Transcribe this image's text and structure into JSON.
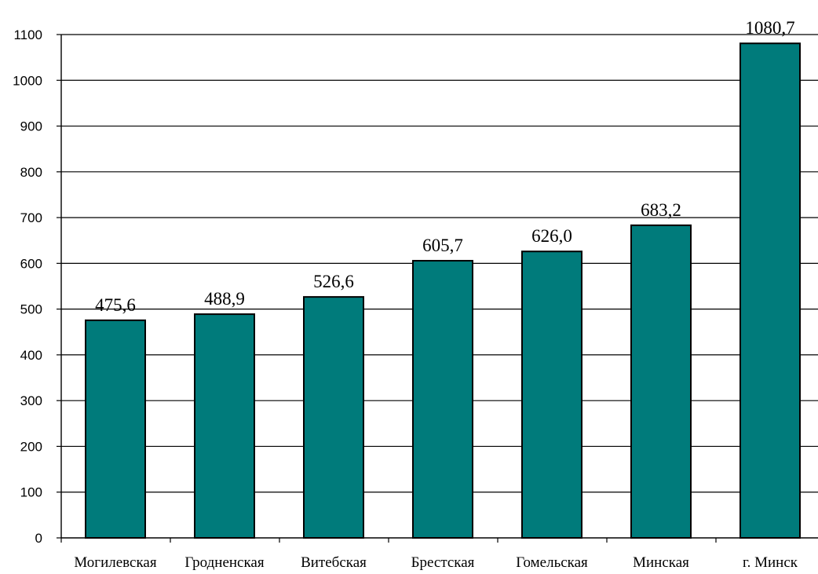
{
  "chart_data": {
    "type": "bar",
    "categories": [
      "Могилевская",
      "Гродненская",
      "Витебская",
      "Брестская",
      "Гомельская",
      "Минская",
      "г. Минск"
    ],
    "values": [
      475.6,
      488.9,
      526.6,
      605.7,
      626.0,
      683.2,
      1080.7
    ],
    "value_labels": [
      "475,6",
      "488,9",
      "526,6",
      "605,7",
      "626,0",
      "683,2",
      "1080,7"
    ],
    "yticks": [
      0,
      100,
      200,
      300,
      400,
      500,
      600,
      700,
      800,
      900,
      1000,
      1100
    ],
    "ylim": [
      0,
      1100
    ],
    "grid": true,
    "legend": "none",
    "title": "",
    "xlabel": "",
    "ylabel": "",
    "colors": {
      "bar": "#007b7b",
      "bar_edge": "#000000",
      "grid": "#000000",
      "axis": "#000000"
    }
  }
}
